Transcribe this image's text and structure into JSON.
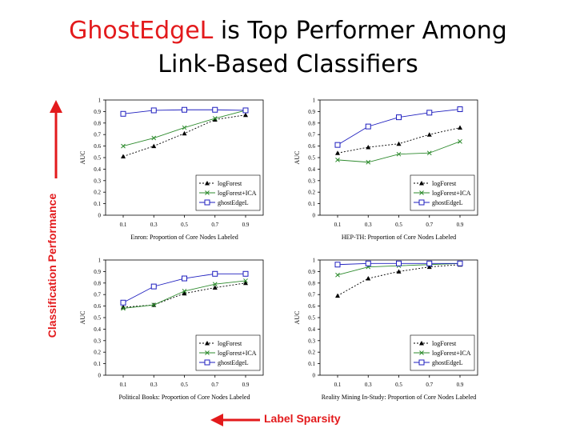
{
  "title": {
    "highlight": "GhostEdgeL",
    "rest_line1": " is Top Performer Among",
    "line2": "Link-Based Classifiers"
  },
  "side_label": "Classification Performance",
  "bottom_label": "Label Sparsity",
  "colors": {
    "accent": "#e31a1c",
    "logForest": "#000000",
    "logForestICA": "#2e8b2e",
    "ghostEdgeL": "#1f1fbf"
  },
  "chart_data": [
    {
      "type": "line",
      "xlabel": "Enron: Proportion of Core Nodes Labeled",
      "ylabel": "AUC",
      "categories": [
        "0.1",
        "0.3",
        "0.5",
        "0.7",
        "0.9"
      ],
      "yticks": [
        "0",
        "0.1",
        "0.2",
        "0.3",
        "0.4",
        "0.5",
        "0.6",
        "0.7",
        "0.8",
        "0.9",
        "1"
      ],
      "ylim": [
        0,
        1
      ],
      "legend_position": "bottom-right",
      "series": [
        {
          "name": "logForest",
          "values": [
            0.51,
            0.6,
            0.71,
            0.83,
            0.87
          ]
        },
        {
          "name": "logForest+ICA",
          "values": [
            0.6,
            0.67,
            0.76,
            0.84,
            0.91
          ]
        },
        {
          "name": "ghostEdgeL",
          "values": [
            0.88,
            0.91,
            0.915,
            0.915,
            0.91
          ]
        }
      ]
    },
    {
      "type": "line",
      "xlabel": "HEP-TH: Proportion of Core Nodes Labeled",
      "ylabel": "AUC",
      "categories": [
        "0.1",
        "0.3",
        "0.5",
        "0.7",
        "0.9"
      ],
      "yticks": [
        "0",
        "0.1",
        "0.2",
        "0.3",
        "0.4",
        "0.5",
        "0.6",
        "0.7",
        "0.8",
        "0.9",
        "1"
      ],
      "ylim": [
        0,
        1
      ],
      "legend_position": "bottom-right",
      "series": [
        {
          "name": "logForest",
          "values": [
            0.54,
            0.59,
            0.62,
            0.7,
            0.76
          ]
        },
        {
          "name": "logForest+ICA",
          "values": [
            0.48,
            0.46,
            0.53,
            0.54,
            0.64
          ]
        },
        {
          "name": "ghostEdgeL",
          "values": [
            0.61,
            0.77,
            0.85,
            0.89,
            0.92
          ]
        }
      ]
    },
    {
      "type": "line",
      "xlabel": "Political Books: Proportion of Core Nodes Labeled",
      "ylabel": "AUC",
      "categories": [
        "0.1",
        "0.3",
        "0.5",
        "0.7",
        "0.9"
      ],
      "yticks": [
        "0",
        "0.1",
        "0.2",
        "0.3",
        "0.4",
        "0.5",
        "0.6",
        "0.7",
        "0.8",
        "0.9",
        "1"
      ],
      "ylim": [
        0,
        1
      ],
      "legend_position": "bottom-right",
      "series": [
        {
          "name": "logForest",
          "values": [
            0.59,
            0.61,
            0.71,
            0.76,
            0.8
          ]
        },
        {
          "name": "logForest+ICA",
          "values": [
            0.58,
            0.61,
            0.73,
            0.79,
            0.82
          ]
        },
        {
          "name": "ghostEdgeL",
          "values": [
            0.63,
            0.77,
            0.84,
            0.88,
            0.88
          ]
        }
      ]
    },
    {
      "type": "line",
      "xlabel": "Reality Mining In-Study: Proportion of Core Nodes Labeled",
      "ylabel": "AUC",
      "categories": [
        "0.1",
        "0.3",
        "0.5",
        "0.7",
        "0.9"
      ],
      "yticks": [
        "0",
        "0.1",
        "0.2",
        "0.3",
        "0.4",
        "0.5",
        "0.6",
        "0.7",
        "0.8",
        "0.9",
        "1"
      ],
      "ylim": [
        0,
        1
      ],
      "legend_position": "bottom-right",
      "series": [
        {
          "name": "logForest",
          "values": [
            0.69,
            0.84,
            0.9,
            0.94,
            0.96
          ]
        },
        {
          "name": "logForest+ICA",
          "values": [
            0.87,
            0.94,
            0.95,
            0.96,
            0.97
          ]
        },
        {
          "name": "ghostEdgeL",
          "values": [
            0.96,
            0.97,
            0.97,
            0.97,
            0.97
          ]
        }
      ]
    }
  ]
}
